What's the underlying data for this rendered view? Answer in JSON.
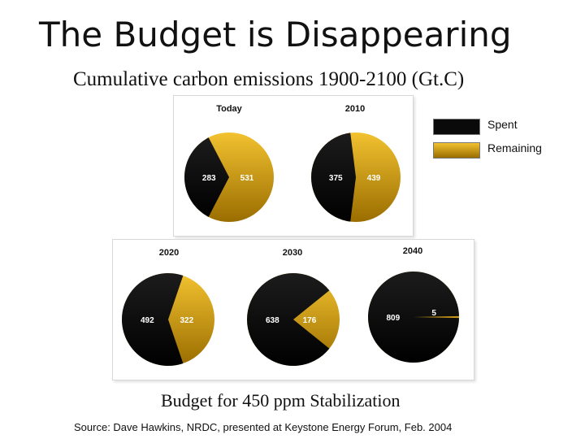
{
  "slide": {
    "title": "The Budget is Disappearing",
    "subtitle": "Cumulative carbon emissions 1900-2100 (Gt.C)",
    "caption": "Budget for 450 ppm Stabilization",
    "source": "Source: Dave Hawkins, NRDC, presented at Keystone Energy Forum, Feb. 2004"
  },
  "legend": {
    "spent_label": "Spent",
    "remaining_label": "Remaining"
  },
  "colors": {
    "spent": "#0a0a0a",
    "remaining_light": "#f2c230",
    "remaining_dark": "#9a6d00"
  },
  "chart_data": [
    {
      "type": "pie",
      "title": "Today",
      "categories": [
        "Spent",
        "Remaining"
      ],
      "values": [
        283,
        531
      ]
    },
    {
      "type": "pie",
      "title": "2010",
      "categories": [
        "Spent",
        "Remaining"
      ],
      "values": [
        375,
        439
      ]
    },
    {
      "type": "pie",
      "title": "2020",
      "categories": [
        "Spent",
        "Remaining"
      ],
      "values": [
        492,
        322
      ]
    },
    {
      "type": "pie",
      "title": "2030",
      "categories": [
        "Spent",
        "Remaining"
      ],
      "values": [
        638,
        176
      ]
    },
    {
      "type": "pie",
      "title": "2040",
      "categories": [
        "Spent",
        "Remaining"
      ],
      "values": [
        809,
        5
      ]
    }
  ]
}
